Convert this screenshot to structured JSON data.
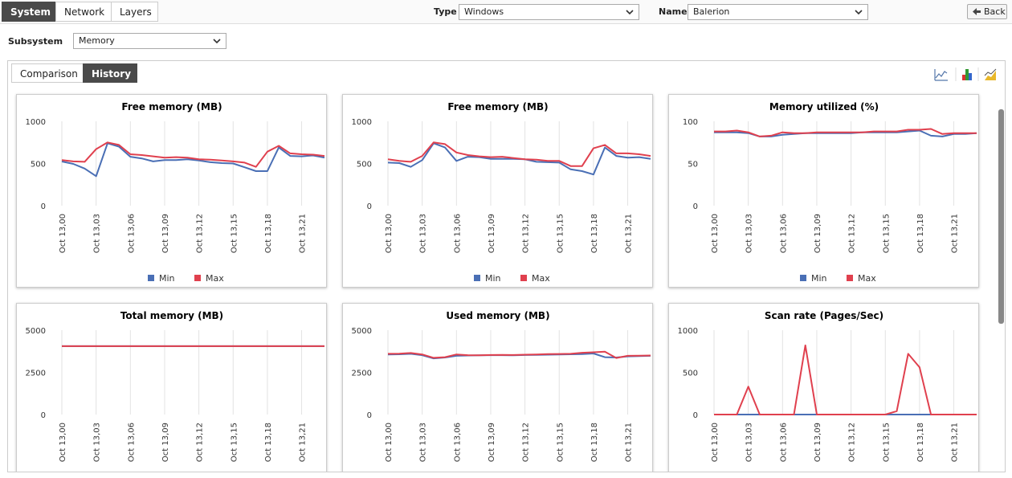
{
  "tabs": {
    "items": [
      "System",
      "Network",
      "Layers"
    ],
    "active": 0
  },
  "filters": {
    "type_label": "Type",
    "type_value": "Windows",
    "name_label": "Name",
    "name_value": "Balerion",
    "back": "Back"
  },
  "subsystem": {
    "label": "Subsystem",
    "value": "Memory"
  },
  "view_tabs": {
    "items": [
      "Comparison",
      "History"
    ],
    "active": 1
  },
  "chart_data": [
    {
      "type": "line",
      "title": "Free memory (MB)",
      "categories": [
        "Oct 13,00",
        null,
        null,
        "Oct 13,03",
        null,
        null,
        "Oct 13,06",
        null,
        null,
        "Oct 13,09",
        null,
        null,
        "Oct 13,12",
        null,
        null,
        "Oct 13,15",
        null,
        null,
        "Oct 13,18",
        null,
        null,
        "Oct 13,21",
        null,
        null
      ],
      "ylim": [
        0,
        1000
      ],
      "yticks": [
        0,
        500,
        1000
      ],
      "legend": true,
      "series": [
        {
          "name": "Min",
          "color": "#4a6fb5",
          "values": [
            524,
            495,
            440,
            350,
            740,
            700,
            580,
            560,
            525,
            540,
            540,
            550,
            535,
            515,
            505,
            500,
            455,
            410,
            410,
            690,
            590,
            585,
            595,
            570
          ]
        },
        {
          "name": "Max",
          "color": "#e0404e",
          "values": [
            540,
            525,
            520,
            670,
            750,
            720,
            610,
            600,
            585,
            570,
            575,
            570,
            550,
            545,
            535,
            525,
            510,
            460,
            640,
            710,
            620,
            610,
            605,
            590
          ]
        }
      ]
    },
    {
      "type": "line",
      "title": "Free memory (MB)",
      "categories": [
        "Oct 13,00",
        null,
        null,
        "Oct 13,03",
        null,
        null,
        "Oct 13,06",
        null,
        null,
        "Oct 13,09",
        null,
        null,
        "Oct 13,12",
        null,
        null,
        "Oct 13,15",
        null,
        null,
        "Oct 13,18",
        null,
        null,
        "Oct 13,21",
        null,
        null
      ],
      "ylim": [
        0,
        1000
      ],
      "yticks": [
        0,
        500,
        1000
      ],
      "legend": true,
      "series": [
        {
          "name": "Min",
          "color": "#4a6fb5",
          "values": [
            510,
            505,
            460,
            540,
            740,
            690,
            530,
            580,
            575,
            555,
            555,
            555,
            550,
            520,
            515,
            510,
            430,
            410,
            370,
            690,
            590,
            570,
            575,
            555
          ]
        },
        {
          "name": "Max",
          "color": "#e0404e",
          "values": [
            550,
            530,
            520,
            590,
            750,
            730,
            630,
            600,
            585,
            575,
            580,
            565,
            550,
            545,
            530,
            530,
            470,
            470,
            680,
            720,
            620,
            620,
            610,
            590
          ]
        }
      ]
    },
    {
      "type": "line",
      "title": "Memory utilized (%)",
      "categories": [
        "Oct 13,00",
        null,
        null,
        "Oct 13,03",
        null,
        null,
        "Oct 13,06",
        null,
        null,
        "Oct 13,09",
        null,
        null,
        "Oct 13,12",
        null,
        null,
        "Oct 13,15",
        null,
        null,
        "Oct 13,18",
        null,
        null,
        "Oct 13,21",
        null,
        null
      ],
      "ylim": [
        0,
        100
      ],
      "yticks": [
        0,
        50,
        100
      ],
      "legend": true,
      "series": [
        {
          "name": "Min",
          "color": "#4a6fb5",
          "values": [
            87,
            87,
            87,
            86,
            82,
            82,
            84,
            85,
            86,
            86,
            86,
            86,
            86,
            87,
            87,
            87,
            87,
            88,
            89,
            83,
            82,
            85,
            85,
            86
          ]
        },
        {
          "name": "Max",
          "color": "#e0404e",
          "values": [
            88,
            88,
            89,
            87,
            82,
            83,
            87,
            86,
            86,
            87,
            87,
            87,
            87,
            87,
            88,
            88,
            88,
            90,
            90,
            91,
            85,
            86,
            86,
            86
          ]
        }
      ]
    },
    {
      "type": "line",
      "title": "Total memory (MB)",
      "categories": [
        "Oct 13,00",
        null,
        null,
        "Oct 13,03",
        null,
        null,
        "Oct 13,06",
        null,
        null,
        "Oct 13,09",
        null,
        null,
        "Oct 13,12",
        null,
        null,
        "Oct 13,15",
        null,
        null,
        "Oct 13,18",
        null,
        null,
        "Oct 13,21",
        null,
        null
      ],
      "ylim": [
        0,
        5000
      ],
      "yticks": [
        0,
        2500,
        5000
      ],
      "legend": false,
      "series": [
        {
          "color": "#4a6fb5",
          "values": [
            4050,
            4050,
            4050,
            4050,
            4050,
            4050,
            4050,
            4050,
            4050,
            4050,
            4050,
            4050,
            4050,
            4050,
            4050,
            4050,
            4050,
            4050,
            4050,
            4050,
            4050,
            4050,
            4050,
            4050
          ]
        },
        {
          "color": "#e0404e",
          "values": [
            4050,
            4050,
            4050,
            4050,
            4050,
            4050,
            4050,
            4050,
            4050,
            4050,
            4050,
            4050,
            4050,
            4050,
            4050,
            4050,
            4050,
            4050,
            4050,
            4050,
            4050,
            4050,
            4050,
            4050
          ]
        }
      ]
    },
    {
      "type": "line",
      "title": "Used memory (MB)",
      "categories": [
        "Oct 13,00",
        null,
        null,
        "Oct 13,03",
        null,
        null,
        "Oct 13,06",
        null,
        null,
        "Oct 13,09",
        null,
        null,
        "Oct 13,12",
        null,
        null,
        "Oct 13,15",
        null,
        null,
        "Oct 13,18",
        null,
        null,
        "Oct 13,21",
        null,
        null
      ],
      "ylim": [
        0,
        5000
      ],
      "yticks": [
        0,
        2500,
        5000
      ],
      "legend": false,
      "series": [
        {
          "color": "#4a6fb5",
          "values": [
            3560,
            3570,
            3600,
            3520,
            3330,
            3380,
            3480,
            3500,
            3510,
            3520,
            3520,
            3510,
            3530,
            3540,
            3550,
            3560,
            3570,
            3580,
            3620,
            3400,
            3380,
            3450,
            3460,
            3480
          ]
        },
        {
          "color": "#e0404e",
          "values": [
            3600,
            3610,
            3650,
            3560,
            3360,
            3400,
            3560,
            3520,
            3510,
            3530,
            3540,
            3530,
            3550,
            3560,
            3580,
            3590,
            3600,
            3660,
            3690,
            3730,
            3350,
            3480,
            3490,
            3500
          ]
        }
      ]
    },
    {
      "type": "line",
      "title": "Scan rate (Pages/Sec)",
      "categories": [
        "Oct 13,00",
        null,
        null,
        "Oct 13,03",
        null,
        null,
        "Oct 13,06",
        null,
        null,
        "Oct 13,09",
        null,
        null,
        "Oct 13,12",
        null,
        null,
        "Oct 13,15",
        null,
        null,
        "Oct 13,18",
        null,
        null,
        "Oct 13,21",
        null,
        null
      ],
      "ylim": [
        0,
        1000
      ],
      "yticks": [
        0,
        500,
        1000
      ],
      "legend": false,
      "series": [
        {
          "color": "#4a6fb5",
          "values": [
            0,
            0,
            0,
            0,
            0,
            0,
            0,
            0,
            0,
            0,
            0,
            0,
            0,
            0,
            0,
            0,
            0,
            0,
            0,
            0,
            0,
            0,
            0,
            0
          ]
        },
        {
          "color": "#e0404e",
          "values": [
            0,
            0,
            0,
            330,
            0,
            0,
            0,
            0,
            820,
            0,
            0,
            0,
            0,
            0,
            0,
            0,
            40,
            720,
            560,
            0,
            0,
            0,
            0,
            0
          ]
        }
      ]
    }
  ]
}
